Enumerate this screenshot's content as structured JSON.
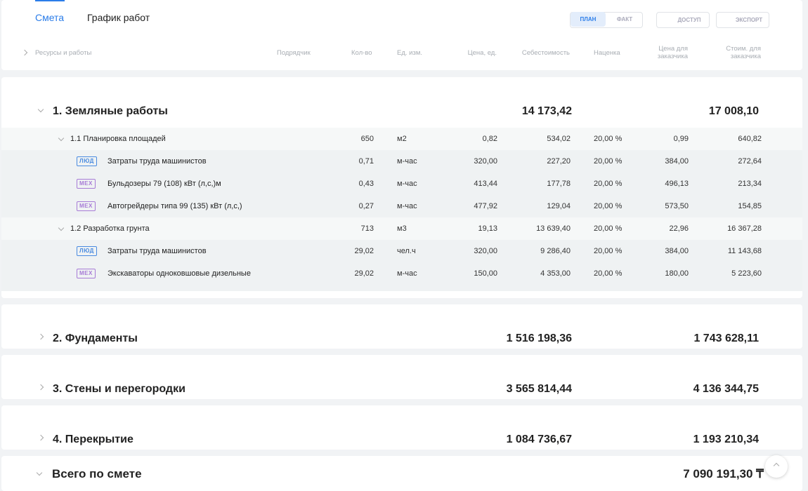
{
  "tabs": [
    "Смета",
    "График работ"
  ],
  "mode_toggle": [
    "ПЛАН",
    "ФАКТ"
  ],
  "buttons": [
    "ДОСТУП",
    "ЭКСПОРТ"
  ],
  "columns": [
    "Ресурсы и работы",
    "Подрядчик",
    "Кол-во",
    "Ед. изм.",
    "Цена, ед.",
    "Себестоимость",
    "Наценка",
    "Цена для заказчика",
    "Стоим. для заказчика"
  ],
  "sections": [
    {
      "title": "1. Земляные работы",
      "cost": "14 173,42",
      "client_total": "17 008,10",
      "subsections": [
        {
          "title": "1.1 Планировка площадей",
          "qty": "650",
          "unit": "м2",
          "price": "0,82",
          "cost": "534,02",
          "markup": "20,00 %",
          "client_price": "0,99",
          "client_total": "640,82",
          "items": [
            {
              "tag": "ЛЮД",
              "name": "Затраты труда машинистов",
              "qty": "0,71",
              "unit": "м-час",
              "price": "320,00",
              "cost": "227,20",
              "markup": "20,00 %",
              "client_price": "384,00",
              "client_total": "272,64"
            },
            {
              "tag": "МЕХ",
              "name": "Бульдозеры 79 (108) кВт (л,с,)м",
              "qty": "0,43",
              "unit": "м-час",
              "price": "413,44",
              "cost": "177,78",
              "markup": "20,00 %",
              "client_price": "496,13",
              "client_total": "213,34"
            },
            {
              "tag": "МЕХ",
              "name": "Автогрейдеры типа 99 (135) кВт (л,с,)",
              "qty": "0,27",
              "unit": "м-час",
              "price": "477,92",
              "cost": "129,04",
              "markup": "20,00 %",
              "client_price": "573,50",
              "client_total": "154,85"
            }
          ]
        },
        {
          "title": "1.2 Разработка грунта",
          "qty": "713",
          "unit": "м3",
          "price": "19,13",
          "cost": "13 639,40",
          "markup": "20,00 %",
          "client_price": "22,96",
          "client_total": "16 367,28",
          "items": [
            {
              "tag": "ЛЮД",
              "name": "Затраты труда машинистов",
              "qty": "29,02",
              "unit": "чел.ч",
              "price": "320,00",
              "cost": "9 286,40",
              "markup": "20,00 %",
              "client_price": "384,00",
              "client_total": "11 143,68"
            },
            {
              "tag": "МЕХ",
              "name": "Экскаваторы одноковшовые дизельные",
              "qty": "29,02",
              "unit": "м-час",
              "price": "150,00",
              "cost": "4 353,00",
              "markup": "20,00 %",
              "client_price": "180,00",
              "client_total": "5 223,60"
            }
          ]
        }
      ]
    },
    {
      "title": "2. Фундаменты",
      "cost": "1 516 198,36",
      "client_total": "1 743 628,11",
      "subsections": []
    },
    {
      "title": "3. Стены и перегородки",
      "cost": "3 565 814,44",
      "client_total": "4 136 344,75",
      "subsections": []
    },
    {
      "title": "4. Перекрытие",
      "cost": "1 084 736,67",
      "client_total": "1 193 210,34",
      "subsections": []
    }
  ],
  "total": {
    "label": "Всего по смете",
    "value": "7 090 191,30 ₸"
  }
}
